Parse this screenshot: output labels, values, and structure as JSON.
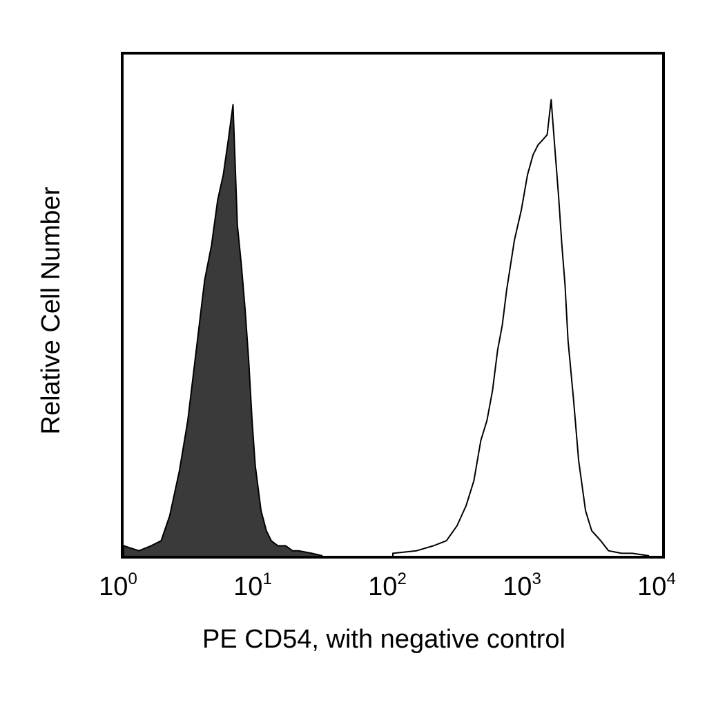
{
  "chart_data": {
    "type": "area",
    "title": "",
    "xlabel": "PE CD54, with negative control",
    "ylabel": "Relative Cell Number",
    "x_scale": "log",
    "xlim": [
      1,
      10000
    ],
    "ylim": [
      0,
      1
    ],
    "grid": false,
    "legend": "none",
    "x_ticks": [
      {
        "value": 1,
        "base": "10",
        "exp": "0"
      },
      {
        "value": 10,
        "base": "10",
        "exp": "1"
      },
      {
        "value": 100,
        "base": "10",
        "exp": "2"
      },
      {
        "value": 1000,
        "base": "10",
        "exp": "3"
      },
      {
        "value": 10000,
        "base": "10",
        "exp": "4"
      }
    ],
    "series": [
      {
        "style": "filled",
        "color": "#3a3a3a",
        "x": [
          1,
          1.3,
          1.6,
          1.9,
          2.2,
          2.6,
          3.0,
          3.5,
          4.0,
          4.5,
          5.0,
          5.5,
          6.0,
          6.5,
          7.0,
          7.5,
          8.0,
          8.5,
          9.0,
          9.5,
          10.5,
          11.5,
          12.5,
          14,
          16,
          18,
          20,
          25,
          30
        ],
        "y": [
          0.02,
          0.01,
          0.02,
          0.03,
          0.08,
          0.17,
          0.27,
          0.42,
          0.55,
          0.62,
          0.71,
          0.76,
          0.83,
          0.9,
          0.66,
          0.58,
          0.49,
          0.39,
          0.27,
          0.18,
          0.09,
          0.05,
          0.03,
          0.02,
          0.02,
          0.01,
          0.01,
          0.005,
          0
        ]
      },
      {
        "style": "outline",
        "color": "#000000",
        "x": [
          100,
          150,
          200,
          250,
          300,
          350,
          400,
          450,
          500,
          550,
          600,
          650,
          700,
          800,
          900,
          1000,
          1100,
          1200,
          1300,
          1400,
          1500,
          1600,
          1700,
          1800,
          1900,
          2000,
          2200,
          2400,
          2700,
          3000,
          3500,
          4000,
          5000,
          6000,
          8000
        ],
        "y": [
          0.005,
          0.01,
          0.02,
          0.03,
          0.06,
          0.1,
          0.15,
          0.23,
          0.27,
          0.33,
          0.41,
          0.46,
          0.53,
          0.63,
          0.69,
          0.76,
          0.8,
          0.82,
          0.83,
          0.84,
          0.91,
          0.81,
          0.72,
          0.62,
          0.54,
          0.43,
          0.31,
          0.19,
          0.09,
          0.05,
          0.03,
          0.01,
          0.005,
          0.005,
          0
        ]
      }
    ]
  }
}
